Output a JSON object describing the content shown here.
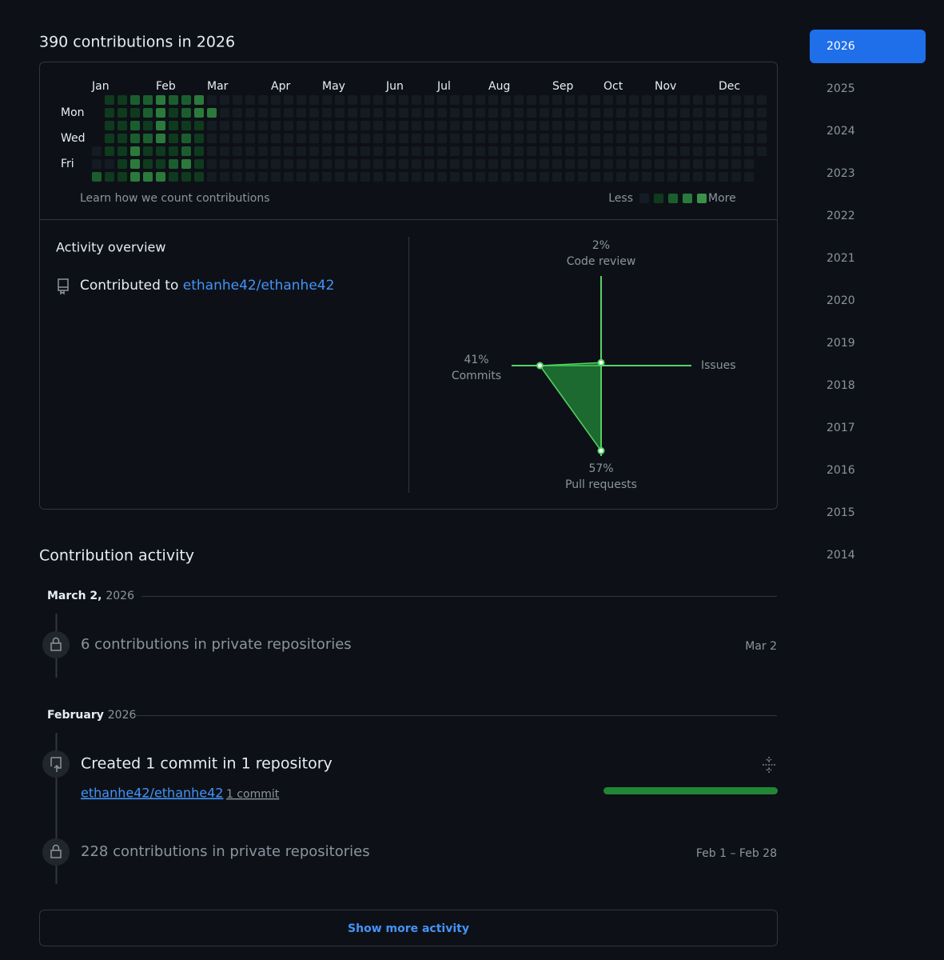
{
  "title": "390 contributions in 2026",
  "calendar": {
    "months": [
      "Jan",
      "Feb",
      "Mar",
      "Apr",
      "May",
      "Jun",
      "Jul",
      "Aug",
      "Sep",
      "Oct",
      "Nov",
      "Dec"
    ],
    "days": [
      "Mon",
      "Wed",
      "Fri"
    ],
    "colors": [
      "#151b23",
      "#0f3a1e",
      "#1b5e2e",
      "#2b7a3b",
      "#3b9247"
    ],
    "levels": [
      [
        null,
        null,
        null,
        null,
        0,
        0,
        2
      ],
      [
        1,
        1,
        1,
        1,
        1,
        0,
        1
      ],
      [
        1,
        1,
        1,
        1,
        1,
        1,
        1
      ],
      [
        2,
        1,
        2,
        2,
        3,
        3,
        3
      ],
      [
        2,
        2,
        1,
        2,
        1,
        1,
        3
      ],
      [
        3,
        3,
        3,
        3,
        1,
        1,
        3
      ],
      [
        2,
        1,
        1,
        1,
        1,
        2,
        1
      ],
      [
        2,
        2,
        1,
        2,
        2,
        3,
        1
      ],
      [
        3,
        3,
        1,
        1,
        1,
        1,
        1
      ],
      [
        0,
        3,
        0,
        0,
        0,
        0,
        0
      ],
      [
        0,
        0,
        0,
        0,
        0,
        0,
        0
      ],
      [
        0,
        0,
        0,
        0,
        0,
        0,
        0
      ],
      [
        0,
        0,
        0,
        0,
        0,
        0,
        0
      ],
      [
        0,
        0,
        0,
        0,
        0,
        0,
        0
      ],
      [
        0,
        0,
        0,
        0,
        0,
        0,
        0
      ],
      [
        0,
        0,
        0,
        0,
        0,
        0,
        0
      ],
      [
        0,
        0,
        0,
        0,
        0,
        0,
        0
      ],
      [
        0,
        0,
        0,
        0,
        0,
        0,
        0
      ],
      [
        0,
        0,
        0,
        0,
        0,
        0,
        0
      ],
      [
        0,
        0,
        0,
        0,
        0,
        0,
        0
      ],
      [
        0,
        0,
        0,
        0,
        0,
        0,
        0
      ],
      [
        0,
        0,
        0,
        0,
        0,
        0,
        0
      ],
      [
        0,
        0,
        0,
        0,
        0,
        0,
        0
      ],
      [
        0,
        0,
        0,
        0,
        0,
        0,
        0
      ],
      [
        0,
        0,
        0,
        0,
        0,
        0,
        0
      ],
      [
        0,
        0,
        0,
        0,
        0,
        0,
        0
      ],
      [
        0,
        0,
        0,
        0,
        0,
        0,
        0
      ],
      [
        0,
        0,
        0,
        0,
        0,
        0,
        0
      ],
      [
        0,
        0,
        0,
        0,
        0,
        0,
        0
      ],
      [
        0,
        0,
        0,
        0,
        0,
        0,
        0
      ],
      [
        0,
        0,
        0,
        0,
        0,
        0,
        0
      ],
      [
        0,
        0,
        0,
        0,
        0,
        0,
        0
      ],
      [
        0,
        0,
        0,
        0,
        0,
        0,
        0
      ],
      [
        0,
        0,
        0,
        0,
        0,
        0,
        0
      ],
      [
        0,
        0,
        0,
        0,
        0,
        0,
        0
      ],
      [
        0,
        0,
        0,
        0,
        0,
        0,
        0
      ],
      [
        0,
        0,
        0,
        0,
        0,
        0,
        0
      ],
      [
        0,
        0,
        0,
        0,
        0,
        0,
        0
      ],
      [
        0,
        0,
        0,
        0,
        0,
        0,
        0
      ],
      [
        0,
        0,
        0,
        0,
        0,
        0,
        0
      ],
      [
        0,
        0,
        0,
        0,
        0,
        0,
        0
      ],
      [
        0,
        0,
        0,
        0,
        0,
        0,
        0
      ],
      [
        0,
        0,
        0,
        0,
        0,
        0,
        0
      ],
      [
        0,
        0,
        0,
        0,
        0,
        0,
        0
      ],
      [
        0,
        0,
        0,
        0,
        0,
        0,
        0
      ],
      [
        0,
        0,
        0,
        0,
        0,
        0,
        0
      ],
      [
        0,
        0,
        0,
        0,
        0,
        0,
        0
      ],
      [
        0,
        0,
        0,
        0,
        0,
        0,
        0
      ],
      [
        0,
        0,
        0,
        0,
        0,
        0,
        0
      ],
      [
        0,
        0,
        0,
        0,
        0,
        0,
        0
      ],
      [
        0,
        0,
        0,
        0,
        0,
        0,
        0
      ],
      [
        0,
        0,
        0,
        0,
        0,
        0,
        0
      ],
      [
        0,
        0,
        0,
        0,
        0,
        null,
        null
      ]
    ],
    "learn": "Learn how we count contributions",
    "less": "Less",
    "more": "More"
  },
  "overview": {
    "title": "Activity overview",
    "contributed": "Contributed to",
    "repo": "ethanhe42/ethanhe42"
  },
  "radar": {
    "color": "#56d364",
    "fill": "#26a641",
    "axes": [
      {
        "name": "Code review",
        "value": 2,
        "label": "2%"
      },
      {
        "name": "Issues",
        "value": 0
      },
      {
        "name": "Pull requests",
        "value": 57,
        "label": "57%"
      },
      {
        "name": "Commits",
        "value": 41,
        "label": "41%"
      }
    ]
  },
  "activity": {
    "title": "Contribution activity",
    "groups": [
      {
        "month": "March 2,",
        "year": "2026",
        "items": [
          {
            "text": "6 contributions in private repositories",
            "date": "Mar 2"
          }
        ]
      },
      {
        "month": "February",
        "year": "2026",
        "items": [
          {
            "text": "Created 1 commit in 1 repository",
            "repo": "ethanhe42/ethanhe42",
            "count": "1 commit"
          },
          {
            "text": "228 contributions in private repositories",
            "date": "Feb 1 – Feb 28"
          }
        ]
      }
    ],
    "more": "Show more activity"
  },
  "years": [
    "2026",
    "2025",
    "2024",
    "2023",
    "2022",
    "2021",
    "2020",
    "2019",
    "2018",
    "2017",
    "2016",
    "2015",
    "2014"
  ]
}
